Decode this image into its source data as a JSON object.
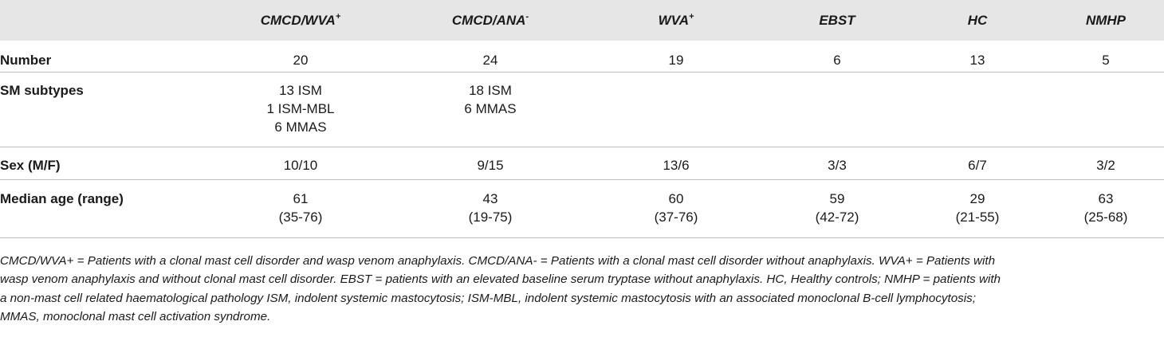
{
  "table": {
    "columns": [
      {
        "label": "",
        "sup": ""
      },
      {
        "label": "CMCD/WVA",
        "sup": "+"
      },
      {
        "label": "CMCD/ANA",
        "sup": "-"
      },
      {
        "label": "WVA",
        "sup": "+"
      },
      {
        "label": "EBST",
        "sup": ""
      },
      {
        "label": "HC",
        "sup": ""
      },
      {
        "label": "NMHP",
        "sup": ""
      }
    ],
    "rows": [
      {
        "label": "Number",
        "cells": [
          [
            "20"
          ],
          [
            "24"
          ],
          [
            "19"
          ],
          [
            "6"
          ],
          [
            "13"
          ],
          [
            "5"
          ]
        ]
      },
      {
        "label": "SM subtypes",
        "cells": [
          [
            "13 ISM",
            "1 ISM-MBL",
            "6 MMAS"
          ],
          [
            "18 ISM",
            "6 MMAS"
          ],
          [],
          [],
          [],
          []
        ]
      },
      {
        "label": "Sex (M/F)",
        "cells": [
          [
            "10/10"
          ],
          [
            "9/15"
          ],
          [
            "13/6"
          ],
          [
            "3/3"
          ],
          [
            "6/7"
          ],
          [
            "3/2"
          ]
        ]
      },
      {
        "label": "Median age (range)",
        "cells": [
          [
            "61",
            "(35-76)"
          ],
          [
            "43",
            "(19-75)"
          ],
          [
            "60",
            "(37-76)"
          ],
          [
            "59",
            "(42-72)"
          ],
          [
            "29",
            "(21-55)"
          ],
          [
            "63",
            "(25-68)"
          ]
        ]
      }
    ]
  },
  "footnote": {
    "lines": [
      "CMCD/WVA+ = Patients with a clonal mast cell disorder and wasp venom anaphylaxis. CMCD/ANA- = Patients with a clonal mast cell disorder without anaphylaxis. WVA+ = Patients with",
      "wasp venom anaphylaxis and without clonal mast cell disorder. EBST = patients with an elevated baseline serum tryptase without anaphylaxis. HC, Healthy controls; NMHP = patients with",
      "a non-mast cell related haematological pathology ISM, indolent systemic mastocytosis; ISM-MBL, indolent systemic mastocytosis with an associated monoclonal B-cell lymphocytosis;",
      "MMAS, monoclonal mast cell activation syndrome."
    ]
  }
}
